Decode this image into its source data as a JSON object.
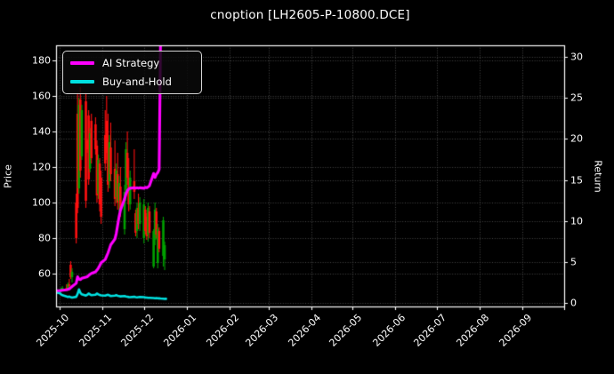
{
  "title": "cnoption [LH2605-P-10800.DCE]",
  "legend": {
    "items": [
      {
        "label": "AI Strategy",
        "color": "#ff00ff"
      },
      {
        "label": "Buy-and-Hold",
        "color": "#00e0e0"
      }
    ]
  },
  "axes": {
    "price": {
      "label": "Price",
      "ticks": [
        60,
        80,
        100,
        120,
        140,
        160,
        180
      ],
      "domain": [
        41.5,
        188.5
      ]
    },
    "return": {
      "label": "Return",
      "ticks": [
        0,
        5,
        10,
        15,
        20,
        25,
        30
      ],
      "domain": [
        -0.43,
        31.43
      ]
    },
    "x": {
      "tick_labels": [
        "2025-10",
        "2025-11",
        "2025-12",
        "2026-01",
        "2026-02",
        "2026-03",
        "2026-04",
        "2026-05",
        "2026-06",
        "2026-07",
        "2026-08",
        "2026-09"
      ],
      "tick_day_offsets": [
        0,
        31,
        61,
        92,
        123,
        151,
        182,
        212,
        243,
        273,
        304,
        335
      ],
      "edge_tick_day_offset": 365,
      "domain_days": [
        -2.575,
        365
      ]
    }
  },
  "colors": {
    "background": "#000000",
    "text": "#ffffff",
    "spine": "#ffffff",
    "grid": "#4f4f4f",
    "candle_up": "#00a000",
    "candle_down": "#ff1010",
    "ai_line": "#ff00ff",
    "bh_line": "#00e0e0"
  },
  "chart_data": {
    "type": "candlestick+line",
    "title": "cnoption [LH2605-P-10800.DCE]",
    "epoch": "2025-10-01",
    "price_ylim": [
      41.5,
      188.5
    ],
    "return_ylim": [
      -0.43,
      31.43
    ],
    "grid": "dotted-both-axes",
    "legend_position": "upper-left",
    "candles_ohlc": [
      [
        "2025-10-01",
        50,
        51.5,
        49,
        50.5
      ],
      [
        "2025-10-02",
        50.5,
        52,
        49.5,
        51.2
      ],
      [
        "2025-10-03",
        51,
        53,
        50,
        52
      ],
      [
        "2025-10-06",
        52,
        54,
        50.5,
        51
      ],
      [
        "2025-10-07",
        51,
        55,
        50.5,
        54
      ],
      [
        "2025-10-08",
        54,
        57,
        52,
        53
      ],
      [
        "2025-10-09",
        65,
        67,
        57,
        58
      ],
      [
        "2025-10-10",
        58,
        63,
        55,
        61
      ],
      [
        "2025-10-13",
        100,
        105,
        77,
        80
      ],
      [
        "2025-10-14",
        150,
        162,
        94,
        97
      ],
      [
        "2025-10-15",
        108,
        159,
        105,
        155
      ],
      [
        "2025-10-16",
        158,
        165,
        114,
        118
      ],
      [
        "2025-10-17",
        126,
        155,
        124,
        152
      ],
      [
        "2025-10-20",
        157,
        162,
        97,
        101
      ],
      [
        "2025-10-21",
        135,
        136,
        128,
        130
      ],
      [
        "2025-10-22",
        149,
        152,
        110,
        113
      ],
      [
        "2025-10-23",
        119,
        142,
        117,
        139
      ],
      [
        "2025-10-24",
        146,
        150,
        122,
        125
      ],
      [
        "2025-10-27",
        144,
        148,
        127,
        130
      ],
      [
        "2025-10-28",
        132,
        135,
        100,
        104
      ],
      [
        "2025-10-29",
        105,
        127,
        102,
        124
      ],
      [
        "2025-10-30",
        122,
        125,
        95,
        99
      ],
      [
        "2025-10-31",
        114,
        118,
        88,
        92
      ],
      [
        "2025-11-03",
        138,
        152,
        118,
        122
      ],
      [
        "2025-11-04",
        146,
        160,
        124,
        128
      ],
      [
        "2025-11-05",
        134,
        150,
        106,
        110
      ],
      [
        "2025-11-06",
        112,
        138,
        108,
        134
      ],
      [
        "2025-11-07",
        131,
        145,
        112,
        116
      ],
      [
        "2025-11-10",
        119,
        135,
        98,
        102
      ],
      [
        "2025-11-11",
        103,
        122,
        100,
        118
      ],
      [
        "2025-11-12",
        116,
        128,
        96,
        100
      ],
      [
        "2025-11-13",
        101,
        115,
        95,
        111
      ],
      [
        "2025-11-14",
        109,
        120,
        92,
        96
      ],
      [
        "2025-11-17",
        85,
        110,
        82,
        106
      ],
      [
        "2025-11-18",
        107,
        134,
        101,
        130
      ],
      [
        "2025-11-19",
        128,
        140,
        110,
        114
      ],
      [
        "2025-11-20",
        114,
        125,
        95,
        99
      ],
      [
        "2025-11-21",
        99,
        118,
        96,
        114
      ],
      [
        "2025-11-24",
        112,
        130,
        102,
        106
      ],
      [
        "2025-11-25",
        94,
        96,
        81,
        83
      ],
      [
        "2025-11-26",
        84,
        100,
        80,
        97
      ],
      [
        "2025-11-27",
        97,
        105,
        85,
        88
      ],
      [
        "2025-11-28",
        88,
        103,
        84,
        100
      ],
      [
        "2025-12-01",
        80,
        102,
        77,
        99
      ],
      [
        "2025-12-02",
        96,
        98,
        82,
        84
      ],
      [
        "2025-12-03",
        92,
        94,
        79,
        81
      ],
      [
        "2025-12-04",
        82,
        100,
        78,
        97
      ],
      [
        "2025-12-05",
        95,
        98,
        80,
        83
      ],
      [
        "2025-12-08",
        64,
        85,
        63,
        84
      ],
      [
        "2025-12-09",
        79,
        100,
        76,
        96
      ],
      [
        "2025-12-10",
        95,
        97,
        80,
        82
      ],
      [
        "2025-12-11",
        66,
        88,
        63,
        85
      ],
      [
        "2025-12-12",
        84,
        86,
        72,
        74
      ],
      [
        "2025-12-15",
        70,
        92,
        64,
        90
      ],
      [
        "2025-12-16",
        68,
        78,
        62,
        76
      ]
    ],
    "series": [
      {
        "name": "AI Strategy",
        "axis": "return",
        "color": "#ff00ff",
        "points": [
          [
            -3,
            1.5
          ],
          [
            0,
            1.5
          ],
          [
            2,
            1.55
          ],
          [
            5,
            1.6
          ],
          [
            7,
            1.7
          ],
          [
            8,
            1.85
          ],
          [
            9,
            2.0
          ],
          [
            12,
            2.4
          ],
          [
            13,
            3.2
          ],
          [
            14,
            2.9
          ],
          [
            15,
            2.85
          ],
          [
            16,
            3.0
          ],
          [
            19,
            3.15
          ],
          [
            20,
            3.2
          ],
          [
            21,
            3.35
          ],
          [
            22,
            3.5
          ],
          [
            23,
            3.6
          ],
          [
            26,
            3.8
          ],
          [
            27,
            4.0
          ],
          [
            28,
            4.25
          ],
          [
            29,
            4.55
          ],
          [
            30,
            4.9
          ],
          [
            33,
            5.3
          ],
          [
            34,
            5.7
          ],
          [
            35,
            6.1
          ],
          [
            36,
            6.6
          ],
          [
            37,
            7.1
          ],
          [
            40,
            7.8
          ],
          [
            41,
            8.5
          ],
          [
            42,
            9.5
          ],
          [
            43,
            10.5
          ],
          [
            44,
            11.3
          ],
          [
            47,
            12.7
          ],
          [
            48,
            13.3
          ],
          [
            49,
            13.7
          ],
          [
            50,
            13.9
          ],
          [
            51,
            14.0
          ],
          [
            54,
            14.05
          ],
          [
            55,
            14.0
          ],
          [
            56,
            14.05
          ],
          [
            57,
            14.0
          ],
          [
            58,
            14.05
          ],
          [
            61,
            14.0
          ],
          [
            62,
            14.1
          ],
          [
            63,
            14.05
          ],
          [
            64,
            14.15
          ],
          [
            65,
            14.3
          ],
          [
            68,
            15.8
          ],
          [
            69,
            15.3
          ],
          [
            70,
            15.7
          ],
          [
            71,
            15.9
          ],
          [
            72,
            16.3
          ],
          [
            73,
            31.8
          ]
        ]
      },
      {
        "name": "Buy-and-Hold",
        "axis": "return",
        "color": "#00e0e0",
        "points": [
          [
            -3,
            1.3
          ],
          [
            0,
            1.2
          ],
          [
            1,
            1.05
          ],
          [
            2,
            0.95
          ],
          [
            5,
            0.8
          ],
          [
            6,
            0.72
          ],
          [
            7,
            0.78
          ],
          [
            8,
            0.7
          ],
          [
            9,
            0.65
          ],
          [
            12,
            0.75
          ],
          [
            13,
            1.1
          ],
          [
            14,
            1.65
          ],
          [
            15,
            1.25
          ],
          [
            16,
            1.05
          ],
          [
            19,
            0.9
          ],
          [
            20,
            1.0
          ],
          [
            21,
            1.15
          ],
          [
            22,
            1.05
          ],
          [
            23,
            0.95
          ],
          [
            26,
            1.0
          ],
          [
            27,
            1.15
          ],
          [
            28,
            1.05
          ],
          [
            29,
            0.98
          ],
          [
            30,
            0.92
          ],
          [
            33,
            0.9
          ],
          [
            34,
            0.95
          ],
          [
            35,
            1.0
          ],
          [
            36,
            0.92
          ],
          [
            37,
            0.85
          ],
          [
            40,
            0.9
          ],
          [
            41,
            0.95
          ],
          [
            42,
            0.88
          ],
          [
            43,
            0.84
          ],
          [
            44,
            0.8
          ],
          [
            47,
            0.85
          ],
          [
            48,
            0.8
          ],
          [
            49,
            0.76
          ],
          [
            50,
            0.72
          ],
          [
            51,
            0.7
          ],
          [
            54,
            0.75
          ],
          [
            55,
            0.7
          ],
          [
            56,
            0.68
          ],
          [
            57,
            0.7
          ],
          [
            58,
            0.72
          ],
          [
            61,
            0.7
          ],
          [
            62,
            0.67
          ],
          [
            63,
            0.65
          ],
          [
            64,
            0.62
          ],
          [
            65,
            0.63
          ],
          [
            68,
            0.6
          ],
          [
            69,
            0.58
          ],
          [
            70,
            0.6
          ],
          [
            71,
            0.58
          ],
          [
            72,
            0.56
          ],
          [
            73,
            0.54
          ],
          [
            75,
            0.52
          ],
          [
            76,
            0.5
          ],
          [
            77,
            0.5
          ]
        ]
      }
    ]
  }
}
